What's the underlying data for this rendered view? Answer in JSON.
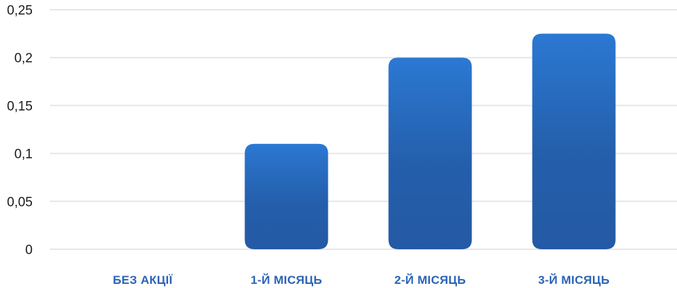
{
  "chart_data": {
    "type": "bar",
    "categories": [
      "БЕЗ АКЦІЇ",
      "1-Й МІСЯЦЬ",
      "2-Й МІСЯЦЬ",
      "3-Й МІСЯЦЬ"
    ],
    "values": [
      0,
      0.11,
      0.2,
      0.225
    ],
    "yticks": [
      "0",
      "0,05",
      "0,1",
      "0,15",
      "0,2",
      "0,25"
    ],
    "ylim": [
      0,
      0.25
    ],
    "grid": true,
    "title": "",
    "xlabel": "",
    "ylabel": "",
    "colors": {
      "bar_top": "#2b78d3",
      "bar_bottom": "#2459a5",
      "label": "#2a63b6",
      "grid": "#e6e6e6"
    }
  }
}
